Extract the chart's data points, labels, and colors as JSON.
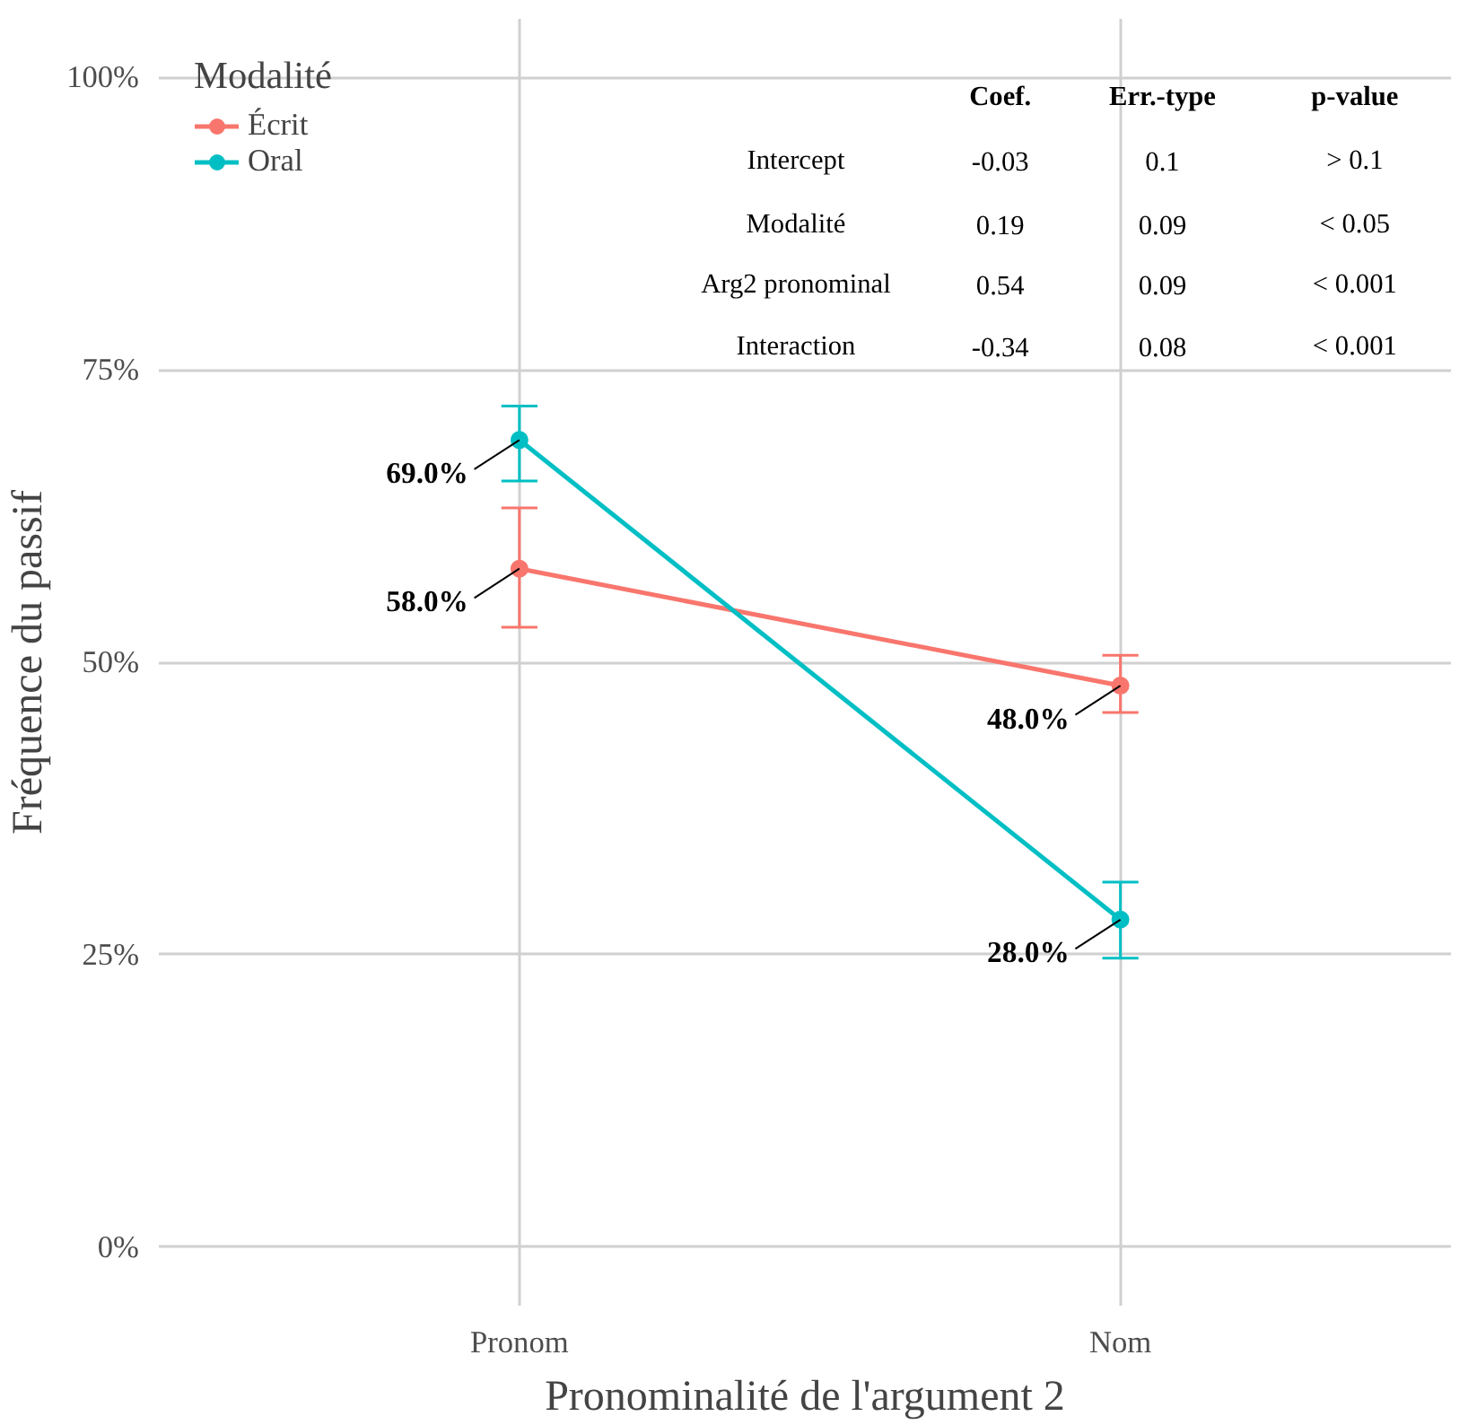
{
  "chart_data": {
    "type": "line",
    "xlabel": "Pronominalité de l'argument 2",
    "ylabel": "Fréquence du passif",
    "legend_title": "Modalité",
    "categories": [
      "Pronom",
      "Nom"
    ],
    "series": [
      {
        "name": "Écrit",
        "color": "#f8766d",
        "values": [
          58.0,
          48.0
        ],
        "errors": [
          [
            53.0,
            63.2
          ],
          [
            45.7,
            50.6
          ]
        ],
        "value_labels": [
          "58.0%",
          "48.0%"
        ]
      },
      {
        "name": "Oral",
        "color": "#00bfc4",
        "values": [
          69.0,
          28.0
        ],
        "errors": [
          [
            65.5,
            71.9
          ],
          [
            24.7,
            31.2
          ]
        ],
        "value_labels": [
          "69.0%",
          "28.0%"
        ]
      }
    ],
    "ylim": [
      -5,
      105
    ],
    "yticks": [
      {
        "value": 0,
        "label": "0%"
      },
      {
        "value": 25,
        "label": "25%"
      },
      {
        "value": 50,
        "label": "50%"
      },
      {
        "value": 75,
        "label": "75%"
      },
      {
        "value": 100,
        "label": "100%"
      }
    ],
    "annotations": [
      "Coef.",
      "Err.-type",
      "p-value",
      "Intercept",
      "-0.03",
      "0.1",
      "> 0.1",
      "Modalité",
      "0.19",
      "0.09",
      "< 0.05",
      "Arg2 pronominal",
      "0.54",
      "0.09",
      "< 0.001",
      "Interaction",
      "-0.34",
      "0.08",
      "< 0.001"
    ],
    "grid": true,
    "legend": "top left",
    "marker": "circle",
    "line_style": "solid"
  }
}
